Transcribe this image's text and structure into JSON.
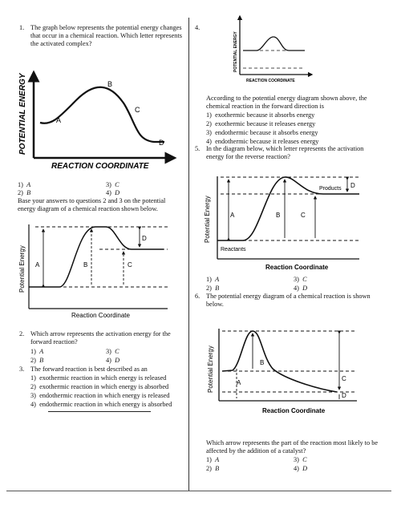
{
  "q1": {
    "num": "1.",
    "text": "The graph below represents the potential energy changes that occur in a chemical reaction. Which letter represents the activated complex?",
    "diagram": {
      "ylabel": "POTENTIAL ENERGY",
      "xlabel": "REACTION COORDINATE",
      "A": "A",
      "B": "B",
      "C": "C",
      "D": "D"
    },
    "options": [
      {
        "num": "1)",
        "val": "A"
      },
      {
        "num": "3)",
        "val": "C"
      },
      {
        "num": "2)",
        "val": "B"
      },
      {
        "num": "4)",
        "val": "D"
      }
    ]
  },
  "base_text": "Base your answers to questions 2 and 3 on the potential energy diagram of a chemical reaction shown below.",
  "diagram2": {
    "ylabel": "Potential Energy",
    "xlabel": "Reaction Coordinate",
    "A": "A",
    "B": "B",
    "C": "C",
    "D": "D"
  },
  "q2": {
    "num": "2.",
    "text": "Which arrow represents the activation energy for the forward reaction?",
    "options": [
      {
        "num": "1)",
        "val": "A"
      },
      {
        "num": "3)",
        "val": "C"
      },
      {
        "num": "2)",
        "val": "B"
      },
      {
        "num": "4)",
        "val": "D"
      }
    ]
  },
  "q3": {
    "num": "3.",
    "text": "The forward reaction is best described as an",
    "options": [
      {
        "num": "1)",
        "val": "exothermic reaction in which energy is released"
      },
      {
        "num": "2)",
        "val": "exothermic reaction in which energy is absorbed"
      },
      {
        "num": "3)",
        "val": "endothermic reaction in which energy is released"
      },
      {
        "num": "4)",
        "val": "endothermic reaction in which energy is absorbed"
      }
    ]
  },
  "q4": {
    "num": "4.",
    "diagram": {
      "ylabel": "POTENTIAL ENERGY",
      "xlabel": "REACTION COORDINATE"
    },
    "text": "According to the potential energy diagram shown above, the chemical reaction in the forward direction is",
    "options": [
      {
        "num": "1)",
        "val": "exothermic because it absorbs energy"
      },
      {
        "num": "2)",
        "val": "exothermic because it releases energy"
      },
      {
        "num": "3)",
        "val": "endothermic because it absorbs energy"
      },
      {
        "num": "4)",
        "val": "endothermic because it releases energy"
      }
    ]
  },
  "q5": {
    "num": "5.",
    "text": "In the diagram below, which letter represents the activation energy for the reverse reaction?",
    "diagram": {
      "ylabel": "Potential Energy",
      "xlabel": "Reaction Coordinate",
      "reactants": "Reactants",
      "products": "Products",
      "A": "A",
      "B": "B",
      "C": "C",
      "D": "D"
    },
    "options": [
      {
        "num": "1)",
        "val": "A"
      },
      {
        "num": "3)",
        "val": "C"
      },
      {
        "num": "2)",
        "val": "B"
      },
      {
        "num": "4)",
        "val": "D"
      }
    ]
  },
  "q6": {
    "num": "6.",
    "text": "The potential energy diagram of a chemical reaction is shown below.",
    "diagram": {
      "ylabel": "Potential Energy",
      "xlabel": "Reaction Coordinate",
      "A": "A",
      "B": "B",
      "C": "C",
      "D": "D"
    },
    "question": "Which arrow represents the part of the reaction most likely to be affected by the addition of a catalyst?",
    "options": [
      {
        "num": "1)",
        "val": "A"
      },
      {
        "num": "3)",
        "val": "C"
      },
      {
        "num": "2)",
        "val": "B"
      },
      {
        "num": "4)",
        "val": "D"
      }
    ]
  }
}
